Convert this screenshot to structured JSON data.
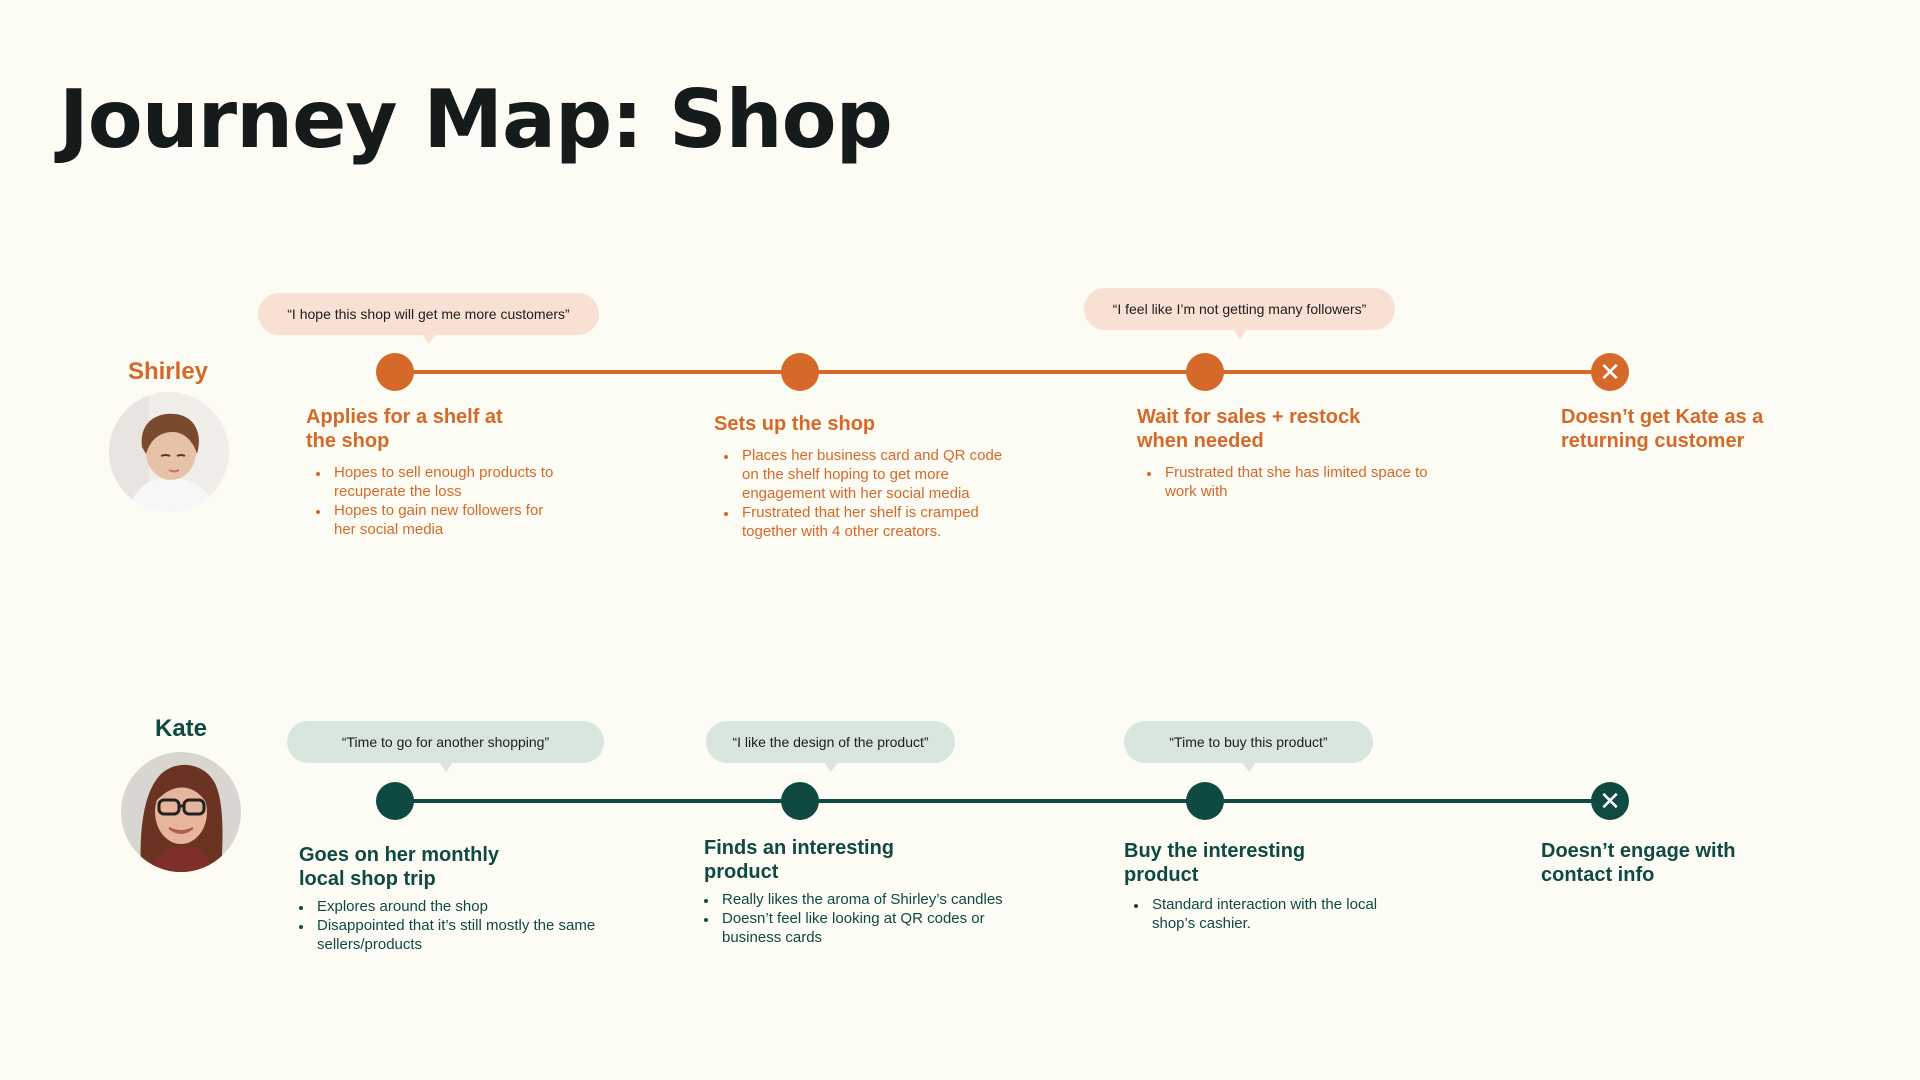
{
  "title": "Journey Map: Shop",
  "colors": {
    "shirley": "#d4692a",
    "kate": "#0e4a42",
    "background": "#fdfcf4"
  },
  "personas": [
    {
      "name": "Shirley",
      "avatar": "avatar-photo",
      "quotes": [
        "“I hope this shop will get me more customers”",
        "“I feel like I’m not getting many followers”"
      ],
      "stages": [
        {
          "title": "Applies for a shelf at the shop",
          "points": [
            "Hopes to sell enough products to recuperate the loss",
            "Hopes to gain new followers for her social media"
          ]
        },
        {
          "title": "Sets up the shop",
          "points": [
            "Places her business card and QR code on the shelf hoping to get more engagement with her social media",
            "Frustrated that her shelf is cramped together with 4 other creators."
          ]
        },
        {
          "title": "Wait for sales + restock when needed",
          "points": [
            "Frustrated that she has limited space to work with"
          ]
        },
        {
          "title": "Doesn’t get Kate as a returning customer",
          "points": []
        }
      ]
    },
    {
      "name": "Kate",
      "avatar": "avatar-photo",
      "quotes": [
        "“Time to go for another shopping”",
        "“I like the design of the product”",
        "“Time to buy this product”"
      ],
      "stages": [
        {
          "title": "Goes on her monthly local shop trip",
          "points": [
            "Explores around the shop",
            "Disappointed that it’s still mostly the same sellers/products"
          ]
        },
        {
          "title": "Finds an interesting product",
          "points": [
            "Really likes the aroma of Shirley’s candles",
            "Doesn’t feel like looking at QR codes or business cards"
          ]
        },
        {
          "title": "Buy the interesting product",
          "points": [
            "Standard interaction with the local shop’s cashier."
          ]
        },
        {
          "title": "Doesn’t engage with contact info",
          "points": []
        }
      ]
    }
  ],
  "end_icon": "close-icon",
  "end_glyph": "✕"
}
